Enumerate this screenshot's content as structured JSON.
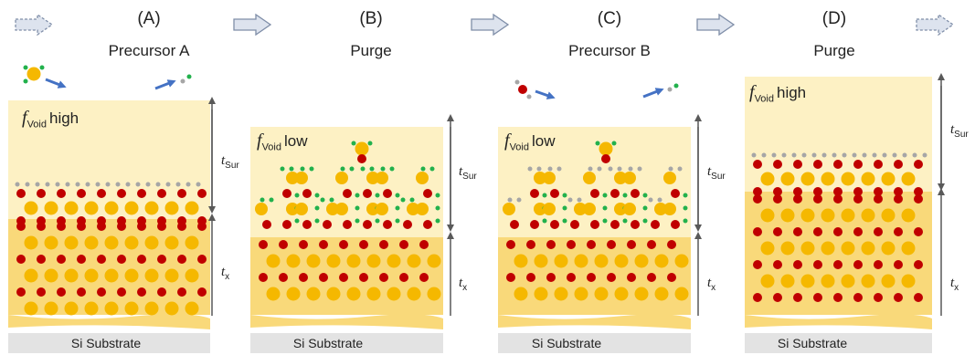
{
  "panels": [
    {
      "letter": "(A)",
      "step": "Precursor A",
      "fvoid_symbol": "f",
      "fvoid_sub": "Void",
      "fvoid_level": "high",
      "t_sur_symbol": "t",
      "t_sur_sub": "Sur",
      "t_x_symbol": "t",
      "t_x_sub": "x",
      "substrate": "Si Substrate"
    },
    {
      "letter": "(B)",
      "step": "Purge",
      "fvoid_symbol": "f",
      "fvoid_sub": "Void",
      "fvoid_level": "low",
      "t_sur_symbol": "t",
      "t_sur_sub": "Sur",
      "t_x_symbol": "t",
      "t_x_sub": "x",
      "substrate": "Si Substrate"
    },
    {
      "letter": "(C)",
      "step": "Precursor B",
      "fvoid_symbol": "f",
      "fvoid_sub": "Void",
      "fvoid_level": "low",
      "t_sur_symbol": "t",
      "t_sur_sub": "Sur",
      "t_x_symbol": "t",
      "t_x_sub": "x",
      "substrate": "Si Substrate"
    },
    {
      "letter": "(D)",
      "step": "Purge",
      "fvoid_symbol": "f",
      "fvoid_sub": "Void",
      "fvoid_level": "high",
      "t_sur_symbol": "t",
      "t_sur_sub": "Sur",
      "t_x_symbol": "t",
      "t_x_sub": "x",
      "substrate": "Si Substrate"
    }
  ],
  "colors": {
    "surface_layer": "#fdf1c4",
    "bulk_layer": "#f9d97a",
    "substrate": "#e3e3e3",
    "metal_atom": "#f5b800",
    "oxygen_atom": "#c00000",
    "ligand_atom": "#22b14c",
    "hydrogen_atom": "#a6a6a6",
    "flow_arrow": "#dde3ee",
    "flow_arrow_border": "#7f8ea8",
    "motion_arrow": "#4472c4",
    "thickness_arrow": "#595959"
  }
}
